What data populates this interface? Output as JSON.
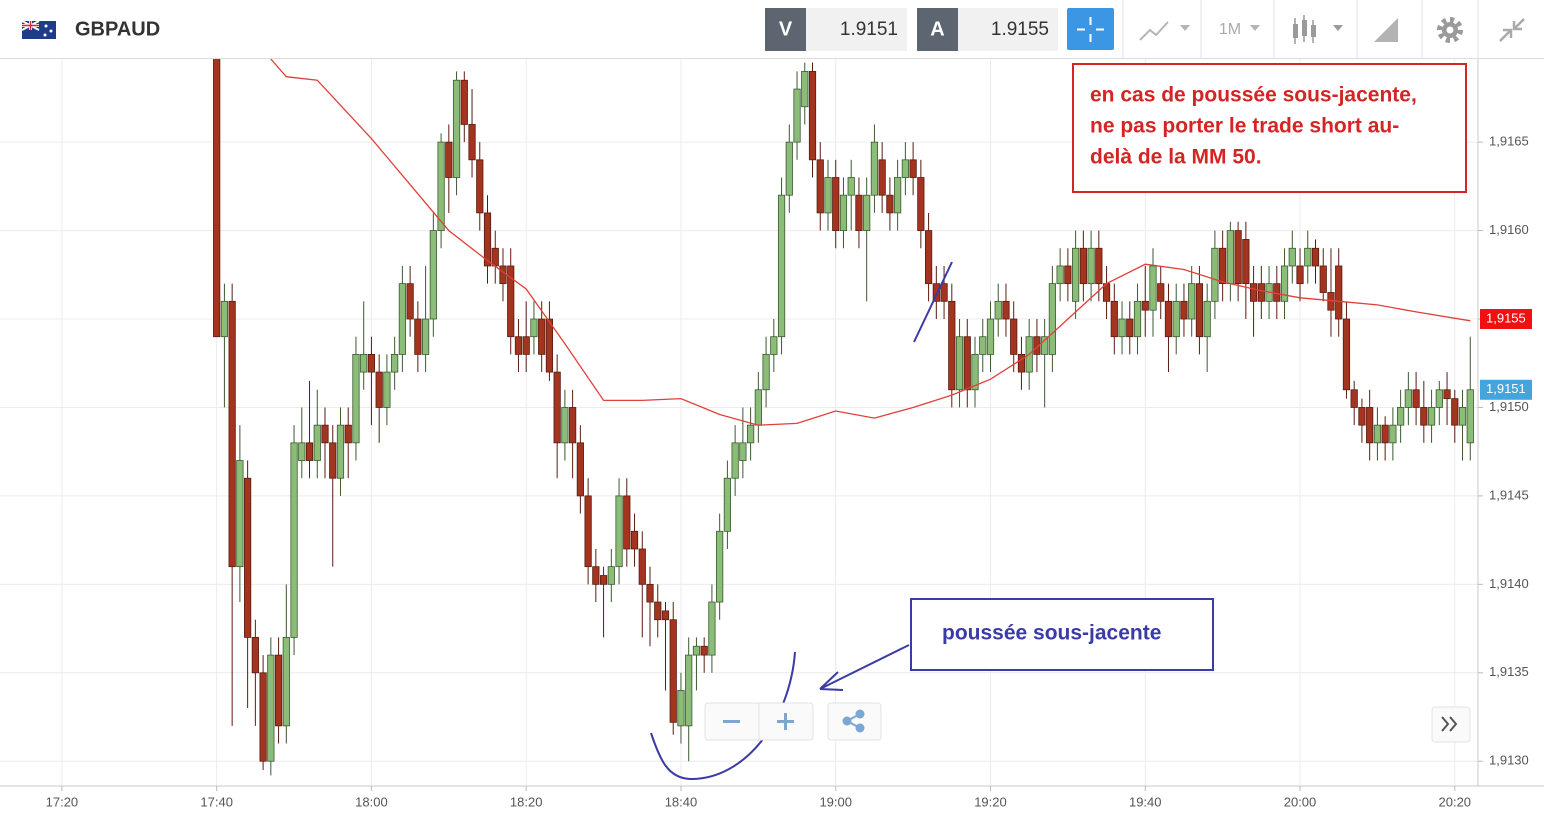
{
  "toolbar": {
    "symbol": "GBPAUD",
    "sell": {
      "label": "V",
      "price": 1.9151
    },
    "buy": {
      "label": "A",
      "price": 1.9155
    },
    "timeframe": "1M"
  },
  "chart_data": {
    "type": "candlestick",
    "x": [
      "17:40",
      "17:41",
      "17:42",
      "17:43",
      "17:44",
      "17:45",
      "17:46",
      "17:47",
      "17:48",
      "17:49",
      "17:50",
      "17:51",
      "17:52",
      "17:53",
      "17:54",
      "17:55",
      "17:56",
      "17:57",
      "17:58",
      "17:59",
      "18:00",
      "18:01",
      "18:02",
      "18:03",
      "18:04",
      "18:05",
      "18:06",
      "18:07",
      "18:08",
      "18:09",
      "18:10",
      "18:11",
      "18:12",
      "18:13",
      "18:14",
      "18:15",
      "18:16",
      "18:17",
      "18:18",
      "18:19",
      "18:20",
      "18:21",
      "18:22",
      "18:23",
      "18:24",
      "18:25",
      "18:26",
      "18:27",
      "18:28",
      "18:29",
      "18:30",
      "18:31",
      "18:32",
      "18:33",
      "18:34",
      "18:35",
      "18:36",
      "18:37",
      "18:38",
      "18:39",
      "18:40",
      "18:41",
      "18:42",
      "18:43",
      "18:44",
      "18:45",
      "18:46",
      "18:47",
      "18:48",
      "18:49",
      "18:50",
      "18:51",
      "18:52",
      "18:53",
      "18:54",
      "18:55",
      "18:56",
      "18:57",
      "18:58",
      "18:59",
      "19:00",
      "19:01",
      "19:02",
      "19:03",
      "19:04",
      "19:05",
      "19:06",
      "19:07",
      "19:08",
      "19:09",
      "19:10",
      "19:11",
      "19:12",
      "19:13",
      "19:14",
      "19:15",
      "19:16",
      "19:17",
      "19:18",
      "19:19",
      "19:20",
      "19:21",
      "19:22",
      "19:23",
      "19:24",
      "19:25",
      "19:26",
      "19:27",
      "19:28",
      "19:29",
      "19:30",
      "19:31",
      "19:32",
      "19:33",
      "19:34",
      "19:35",
      "19:36",
      "19:37",
      "19:38",
      "19:39",
      "19:40",
      "19:41",
      "19:42",
      "19:43",
      "19:44",
      "19:45",
      "19:46",
      "19:47",
      "19:48",
      "19:49",
      "19:50",
      "19:51",
      "19:52",
      "19:53",
      "19:54",
      "19:55",
      "19:56",
      "19:57",
      "19:58",
      "19:59",
      "20:00",
      "20:01",
      "20:02",
      "20:03",
      "20:04",
      "20:05",
      "20:06",
      "20:07",
      "20:08",
      "20:09",
      "20:10",
      "20:11",
      "20:12",
      "20:13",
      "20:14",
      "20:15",
      "20:16",
      "20:17",
      "20:18",
      "20:19",
      "20:20",
      "20:21",
      "20:22"
    ],
    "ohlc": [
      [
        1.9172,
        1.9172,
        1.9154,
        1.9154
      ],
      [
        1.9154,
        1.9157,
        1.915,
        1.9156
      ],
      [
        1.9156,
        1.9157,
        1.9132,
        1.9141
      ],
      [
        1.9141,
        1.9149,
        1.9139,
        1.9147
      ],
      [
        1.9146,
        1.9147,
        1.9133,
        1.9137
      ],
      [
        1.9137,
        1.9138,
        1.9132,
        1.9135
      ],
      [
        1.9135,
        1.9136,
        1.91295,
        1.913
      ],
      [
        1.913,
        1.9137,
        1.91292,
        1.9136
      ],
      [
        1.9136,
        1.9137,
        1.9131,
        1.9132
      ],
      [
        1.9132,
        1.914,
        1.9131,
        1.9137
      ],
      [
        1.9137,
        1.9149,
        1.9136,
        1.9148
      ],
      [
        1.9147,
        1.915,
        1.9146,
        1.9148
      ],
      [
        1.9148,
        1.91515,
        1.9146,
        1.9147
      ],
      [
        1.9147,
        1.9151,
        1.9146,
        1.9149
      ],
      [
        1.9149,
        1.915,
        1.9146,
        1.9148
      ],
      [
        1.9148,
        1.9149,
        1.9141,
        1.9146
      ],
      [
        1.9146,
        1.915,
        1.9145,
        1.9149
      ],
      [
        1.9149,
        1.915,
        1.9146,
        1.9148
      ],
      [
        1.9148,
        1.9154,
        1.9147,
        1.9153
      ],
      [
        1.9152,
        1.9156,
        1.9151,
        1.9153
      ],
      [
        1.9153,
        1.9154,
        1.9149,
        1.9152
      ],
      [
        1.9152,
        1.9153,
        1.9148,
        1.915
      ],
      [
        1.915,
        1.9153,
        1.9149,
        1.9152
      ],
      [
        1.9152,
        1.9154,
        1.9151,
        1.9153
      ],
      [
        1.9153,
        1.9158,
        1.9152,
        1.9157
      ],
      [
        1.9157,
        1.9158,
        1.9154,
        1.9155
      ],
      [
        1.9155,
        1.9156,
        1.9152,
        1.9153
      ],
      [
        1.9153,
        1.9158,
        1.9152,
        1.9155
      ],
      [
        1.9155,
        1.9161,
        1.9154,
        1.916
      ],
      [
        1.916,
        1.91655,
        1.9159,
        1.9165
      ],
      [
        1.9165,
        1.9166,
        1.9161,
        1.9163
      ],
      [
        1.9163,
        1.9169,
        1.9162,
        1.91685
      ],
      [
        1.91685,
        1.9169,
        1.9165,
        1.9166
      ],
      [
        1.9166,
        1.9168,
        1.9163,
        1.9164
      ],
      [
        1.9164,
        1.9165,
        1.916,
        1.9161
      ],
      [
        1.9161,
        1.9162,
        1.9157,
        1.9158
      ],
      [
        1.9159,
        1.916,
        1.9157,
        1.9158
      ],
      [
        1.9158,
        1.9159,
        1.9156,
        1.9157
      ],
      [
        1.9158,
        1.9159,
        1.9153,
        1.9154
      ],
      [
        1.9154,
        1.9155,
        1.9152,
        1.9153
      ],
      [
        1.9154,
        1.9156,
        1.9152,
        1.9153
      ],
      [
        1.9154,
        1.9156,
        1.9153,
        1.9155
      ],
      [
        1.9155,
        1.9156,
        1.9152,
        1.9153
      ],
      [
        1.9155,
        1.9156,
        1.91515,
        1.9152
      ],
      [
        1.9152,
        1.9153,
        1.9146,
        1.9148
      ],
      [
        1.9148,
        1.9151,
        1.9147,
        1.915
      ],
      [
        1.915,
        1.9151,
        1.9146,
        1.9148
      ],
      [
        1.9148,
        1.9149,
        1.9144,
        1.9145
      ],
      [
        1.9145,
        1.9146,
        1.914,
        1.9141
      ],
      [
        1.9141,
        1.9142,
        1.9139,
        1.914
      ],
      [
        1.91405,
        1.9141,
        1.9137,
        1.914
      ],
      [
        1.914,
        1.9142,
        1.9139,
        1.9141
      ],
      [
        1.9141,
        1.9146,
        1.914,
        1.9145
      ],
      [
        1.9145,
        1.9146,
        1.9141,
        1.9142
      ],
      [
        1.9143,
        1.9144,
        1.9141,
        1.9142
      ],
      [
        1.9142,
        1.9143,
        1.9137,
        1.914
      ],
      [
        1.914,
        1.9141,
        1.91365,
        1.9139
      ],
      [
        1.9139,
        1.914,
        1.9137,
        1.9138
      ],
      [
        1.91385,
        1.9139,
        1.9134,
        1.9138
      ],
      [
        1.9138,
        1.9139,
        1.91315,
        1.91322
      ],
      [
        1.9132,
        1.9135,
        1.9131,
        1.9134
      ],
      [
        1.9132,
        1.9137,
        1.913,
        1.9136
      ],
      [
        1.9136,
        1.9137,
        1.9134,
        1.91365
      ],
      [
        1.91365,
        1.9137,
        1.9135,
        1.9136
      ],
      [
        1.9136,
        1.914,
        1.9135,
        1.9139
      ],
      [
        1.9139,
        1.9144,
        1.9138,
        1.9143
      ],
      [
        1.9143,
        1.9147,
        1.9142,
        1.9146
      ],
      [
        1.9146,
        1.9149,
        1.9145,
        1.9148
      ],
      [
        1.9147,
        1.915,
        1.9146,
        1.9148
      ],
      [
        1.9148,
        1.915,
        1.9147,
        1.9149
      ],
      [
        1.9149,
        1.9152,
        1.9148,
        1.9151
      ],
      [
        1.9151,
        1.9154,
        1.915,
        1.9153
      ],
      [
        1.9153,
        1.9155,
        1.9152,
        1.9154
      ],
      [
        1.9154,
        1.9163,
        1.9153,
        1.9162
      ],
      [
        1.9162,
        1.9166,
        1.9161,
        1.9165
      ],
      [
        1.9165,
        1.9169,
        1.9164,
        1.9168
      ],
      [
        1.9167,
        1.91695,
        1.9166,
        1.9169
      ],
      [
        1.9169,
        1.91695,
        1.9163,
        1.9164
      ],
      [
        1.9164,
        1.9165,
        1.916,
        1.9161
      ],
      [
        1.9161,
        1.9164,
        1.916,
        1.9163
      ],
      [
        1.9163,
        1.9164,
        1.9159,
        1.916
      ],
      [
        1.916,
        1.9163,
        1.9159,
        1.9162
      ],
      [
        1.9162,
        1.9164,
        1.916,
        1.9163
      ],
      [
        1.9162,
        1.9163,
        1.9159,
        1.916
      ],
      [
        1.916,
        1.9163,
        1.9156,
        1.9162
      ],
      [
        1.9162,
        1.9166,
        1.9161,
        1.9165
      ],
      [
        1.9164,
        1.9165,
        1.9161,
        1.9162
      ],
      [
        1.9162,
        1.9163,
        1.916,
        1.9161
      ],
      [
        1.9161,
        1.9164,
        1.916,
        1.9163
      ],
      [
        1.9163,
        1.9165,
        1.9162,
        1.9164
      ],
      [
        1.9164,
        1.9165,
        1.9162,
        1.9163
      ],
      [
        1.9163,
        1.9164,
        1.9159,
        1.916
      ],
      [
        1.916,
        1.9161,
        1.9156,
        1.9157
      ],
      [
        1.9157,
        1.9158,
        1.9155,
        1.9156
      ],
      [
        1.9157,
        1.9158,
        1.9155,
        1.9156
      ],
      [
        1.9156,
        1.9157,
        1.915,
        1.9151
      ],
      [
        1.9151,
        1.9155,
        1.915,
        1.9154
      ],
      [
        1.9154,
        1.9155,
        1.915,
        1.9151
      ],
      [
        1.9151,
        1.9154,
        1.915,
        1.9153
      ],
      [
        1.9153,
        1.9155,
        1.9152,
        1.9154
      ],
      [
        1.9153,
        1.9156,
        1.9152,
        1.9155
      ],
      [
        1.9155,
        1.9157,
        1.9154,
        1.9156
      ],
      [
        1.9156,
        1.9157,
        1.9154,
        1.9155
      ],
      [
        1.9155,
        1.9156,
        1.9152,
        1.9153
      ],
      [
        1.9153,
        1.9154,
        1.9151,
        1.9152
      ],
      [
        1.9152,
        1.9155,
        1.9151,
        1.9154
      ],
      [
        1.9154,
        1.9155,
        1.9152,
        1.9153
      ],
      [
        1.9153,
        1.9155,
        1.915,
        1.9154
      ],
      [
        1.9153,
        1.9158,
        1.9152,
        1.9157
      ],
      [
        1.9157,
        1.9159,
        1.9156,
        1.9158
      ],
      [
        1.9158,
        1.9159,
        1.9156,
        1.9157
      ],
      [
        1.9156,
        1.916,
        1.9155,
        1.9159
      ],
      [
        1.9159,
        1.916,
        1.9156,
        1.9157
      ],
      [
        1.9157,
        1.916,
        1.9156,
        1.9159
      ],
      [
        1.9159,
        1.916,
        1.9156,
        1.9157
      ],
      [
        1.9157,
        1.9158,
        1.9155,
        1.9156
      ],
      [
        1.9156,
        1.9157,
        1.9153,
        1.9154
      ],
      [
        1.9154,
        1.9156,
        1.9153,
        1.9155
      ],
      [
        1.9155,
        1.9156,
        1.9153,
        1.9154
      ],
      [
        1.9154,
        1.9157,
        1.9153,
        1.9156
      ],
      [
        1.9156,
        1.9158,
        1.9154,
        1.91555
      ],
      [
        1.91555,
        1.9159,
        1.9154,
        1.9158
      ],
      [
        1.9157,
        1.9158,
        1.9155,
        1.9156
      ],
      [
        1.9156,
        1.9157,
        1.9152,
        1.9154
      ],
      [
        1.9154,
        1.9157,
        1.9153,
        1.9156
      ],
      [
        1.9156,
        1.9157,
        1.9154,
        1.9155
      ],
      [
        1.9155,
        1.9158,
        1.9154,
        1.9157
      ],
      [
        1.9157,
        1.9158,
        1.9153,
        1.9154
      ],
      [
        1.9154,
        1.9157,
        1.9152,
        1.9156
      ],
      [
        1.9156,
        1.916,
        1.9155,
        1.9159
      ],
      [
        1.9159,
        1.916,
        1.9156,
        1.9157
      ],
      [
        1.9157,
        1.91605,
        1.9156,
        1.916
      ],
      [
        1.916,
        1.91605,
        1.9156,
        1.9157
      ],
      [
        1.91595,
        1.91605,
        1.9155,
        1.9157
      ],
      [
        1.9157,
        1.9158,
        1.9154,
        1.9156
      ],
      [
        1.9157,
        1.9158,
        1.9155,
        1.9156
      ],
      [
        1.9156,
        1.9158,
        1.9155,
        1.9157
      ],
      [
        1.9157,
        1.9158,
        1.9155,
        1.9156
      ],
      [
        1.9156,
        1.9159,
        1.9155,
        1.9158
      ],
      [
        1.9158,
        1.916,
        1.9157,
        1.9159
      ],
      [
        1.9158,
        1.9159,
        1.9156,
        1.9157
      ],
      [
        1.9158,
        1.916,
        1.9157,
        1.9159
      ],
      [
        1.9159,
        1.91595,
        1.9157,
        1.9158
      ],
      [
        1.9158,
        1.9159,
        1.9156,
        1.91565
      ],
      [
        1.91565,
        1.9159,
        1.9154,
        1.91555
      ],
      [
        1.9158,
        1.9159,
        1.9154,
        1.9155
      ],
      [
        1.9155,
        1.9156,
        1.91505,
        1.9151
      ],
      [
        1.9151,
        1.91515,
        1.9149,
        1.915
      ],
      [
        1.915,
        1.91505,
        1.9148,
        1.9149
      ],
      [
        1.915,
        1.9151,
        1.9147,
        1.9148
      ],
      [
        1.9148,
        1.915,
        1.9147,
        1.9149
      ],
      [
        1.9149,
        1.91495,
        1.9147,
        1.9148
      ],
      [
        1.9148,
        1.915,
        1.9147,
        1.9149
      ],
      [
        1.9149,
        1.9151,
        1.9148,
        1.915
      ],
      [
        1.915,
        1.9152,
        1.9149,
        1.9151
      ],
      [
        1.9151,
        1.9152,
        1.9149,
        1.915
      ],
      [
        1.915,
        1.91515,
        1.9148,
        1.9149
      ],
      [
        1.9149,
        1.9151,
        1.9148,
        1.915
      ],
      [
        1.915,
        1.91515,
        1.9149,
        1.9151
      ],
      [
        1.9151,
        1.9152,
        1.9149,
        1.91505
      ],
      [
        1.91505,
        1.9151,
        1.9148,
        1.9149
      ],
      [
        1.9149,
        1.9151,
        1.9147,
        1.915
      ],
      [
        1.9148,
        1.9154,
        1.9147,
        1.9151
      ]
    ],
    "up_color": "#8cbd78",
    "down_color": "#a3341f",
    "ma": {
      "color": "#e0403a",
      "x": [
        "17:47",
        "17:49",
        "17:53",
        "18:00",
        "18:05",
        "18:10",
        "18:15",
        "18:20",
        "18:25",
        "18:30",
        "18:35",
        "18:40",
        "18:45",
        "18:50",
        "18:55",
        "19:00",
        "19:05",
        "19:10",
        "19:15",
        "19:20",
        "19:25",
        "19:30",
        "19:35",
        "19:40",
        "19:45",
        "19:50",
        "19:55",
        "20:00",
        "20:05",
        "20:10",
        "20:15",
        "20:22"
      ],
      "values": [
        1.91697,
        1.91687,
        1.91685,
        1.91652,
        1.91626,
        1.916,
        1.91583,
        1.91567,
        1.91536,
        1.91504,
        1.91504,
        1.91505,
        1.91496,
        1.9149,
        1.91491,
        1.91498,
        1.91494,
        1.915,
        1.91507,
        1.91516,
        1.9153,
        1.9155,
        1.9157,
        1.91581,
        1.91578,
        1.91571,
        1.91566,
        1.91562,
        1.9156,
        1.91558,
        1.91554,
        1.91549
      ]
    },
    "xlim": [
      "17:12",
      "20:23"
    ],
    "xticks": [
      "17:20",
      "17:40",
      "18:00",
      "18:20",
      "18:40",
      "19:00",
      "19:20",
      "19:40",
      "20:00",
      "20:20"
    ],
    "ylim": [
      1.91286,
      1.91697
    ],
    "yticks": [
      {
        "value": 1.913,
        "label": "1,9130"
      },
      {
        "value": 1.9135,
        "label": "1,9135"
      },
      {
        "value": 1.914,
        "label": "1,9140"
      },
      {
        "value": 1.9145,
        "label": "1,9145"
      },
      {
        "value": 1.915,
        "label": "1,9150"
      },
      {
        "value": 1.9155,
        "label": "1,9155"
      },
      {
        "value": 1.916,
        "label": "1,9160"
      },
      {
        "value": 1.9165,
        "label": "1,9165"
      }
    ],
    "grid": true,
    "price_labels": [
      {
        "value": 1.9155,
        "label": "1,9155",
        "color": "#f20f0f"
      },
      {
        "value": 1.9151,
        "label": "1,9151",
        "color": "#44a4dc"
      }
    ],
    "annotations": [
      {
        "color": "#d42424",
        "lines": [
          "en cas de poussée sous-jacente,",
          "ne pas porter le trade short au-",
          "delà de la MM 50."
        ]
      },
      {
        "color": "#3a3aa8",
        "lines": [
          "poussée sous-jacente"
        ]
      }
    ]
  }
}
